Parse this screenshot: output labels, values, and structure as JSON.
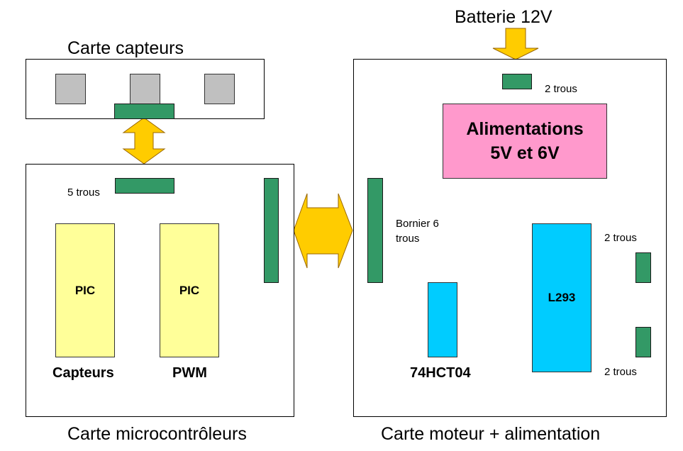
{
  "labels": {
    "battery": "Batterie 12V",
    "sensor_board": "Carte capteurs",
    "micro_board": "Carte microcontrôleurs",
    "motor_board": "Carte moteur + alimentation",
    "five_holes": "5 trous",
    "two_holes_top": "2 trous",
    "terminal_line1": "Bornier 6",
    "terminal_line2": "trous",
    "two_holes_right_top": "2 trous",
    "two_holes_right_bottom": "2 trous",
    "power_line1": "Alimentations",
    "power_line2": "5V et 6V",
    "pic1": "PIC",
    "pic2": "PIC",
    "pic1_caption": "Capteurs",
    "pic2_caption": "PWM",
    "inverter": "74HCT04",
    "driver": "L293"
  },
  "colors": {
    "connector": "#339966",
    "sensor": "#c0c0c0",
    "pic": "#ffff99",
    "chip": "#00ccff",
    "power": "#ff99cc",
    "arrow_fill": "#ffcc00",
    "arrow_stroke": "#996600"
  }
}
